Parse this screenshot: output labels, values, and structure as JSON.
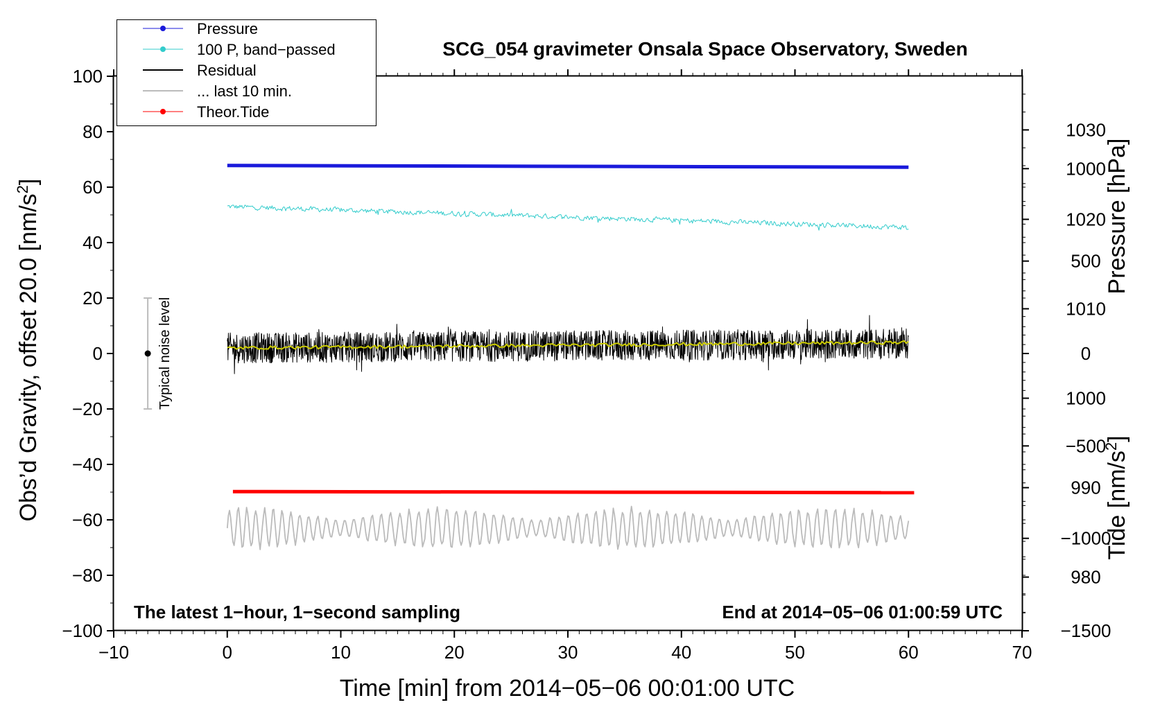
{
  "chart_data": {
    "type": "line",
    "title": "SCG_054 gravimeter Onsala Space Observatory, Sweden",
    "xlabel": "Time [min] from 2014−05−06 00:01:00 UTC",
    "ylabel_left": "Obs’d Gravity, offset 20.0 [nm/s",
    "ylabel_left_sup": "2",
    "ylabel_left_tail": "]",
    "ylabel_right_pressure": "Pressure [hPa]",
    "ylabel_right_tide": "Tide [nm/s",
    "ylabel_right_tide_sup": "2",
    "ylabel_right_tide_tail": "]",
    "xlim": [
      -10,
      70
    ],
    "ylim": [
      -100,
      100
    ],
    "pressure_lim": [
      974,
      1036
    ],
    "tide_lim": [
      -1500,
      1500
    ],
    "x_ticks": [
      "−10",
      "0",
      "10",
      "20",
      "30",
      "40",
      "50",
      "60",
      "70"
    ],
    "y_ticks": [
      "−100",
      "−80",
      "−60",
      "−40",
      "−20",
      "0",
      "20",
      "40",
      "60",
      "80",
      "100"
    ],
    "pressure_ticks": [
      "980",
      "990",
      "1000",
      "1010",
      "1020",
      "1030"
    ],
    "tide_ticks": [
      "−1500",
      "−1000",
      "−500",
      "0",
      "500",
      "1000"
    ],
    "grid": false,
    "legend_position": "top-left",
    "legend": [
      {
        "label": "Pressure",
        "color": "#1a1adb",
        "marker": true
      },
      {
        "label": "100 P, band−passed",
        "color": "#33cccc",
        "marker": true
      },
      {
        "label": "Residual",
        "color": "#000000",
        "marker": false
      },
      {
        "label": "... last 10 min.",
        "color": "#bbbbbb",
        "marker": false
      },
      {
        "label": "Theor.Tide",
        "color": "#ff0000",
        "marker": true
      }
    ],
    "noise_bar": {
      "label": "Typical noise level",
      "x": -7,
      "y": 0,
      "ymin": -20,
      "ymax": 20
    },
    "annotation_left": "The latest 1−hour, 1−second sampling",
    "annotation_right": "End at 2014−05−06 01:00:59 UTC",
    "series": [
      {
        "name": "Pressure",
        "x_start": 0,
        "x_end": 60,
        "y_start": 67.8,
        "y_end": 67.2,
        "color": "#1a1adb"
      },
      {
        "name": "100 P, band−passed",
        "x_start": 0,
        "x_end": 60,
        "y_start": 53,
        "y_end": 45.5,
        "noise": 1.2,
        "color": "#33cccc"
      },
      {
        "name": "Residual",
        "x_start": 0,
        "x_end": 60,
        "y_start": 2,
        "y_end": 3.5,
        "noise": 5.5,
        "color": "#000000"
      },
      {
        "x_start": 0,
        "x_end": 60,
        "y_start": 2,
        "y_end": 4,
        "color": "#cccc00"
      },
      {
        "name": "Theor.Tide",
        "x_start": 0.5,
        "x_end": 60.5,
        "y_start": -49.8,
        "y_end": -50.2,
        "color": "#ff0000"
      },
      {
        "name": "... last 10 min.",
        "x_start": 0,
        "x_end": 60,
        "y_start": -63,
        "y_end": -63,
        "noise": 4.5,
        "color": "#bbbbbb"
      }
    ]
  }
}
